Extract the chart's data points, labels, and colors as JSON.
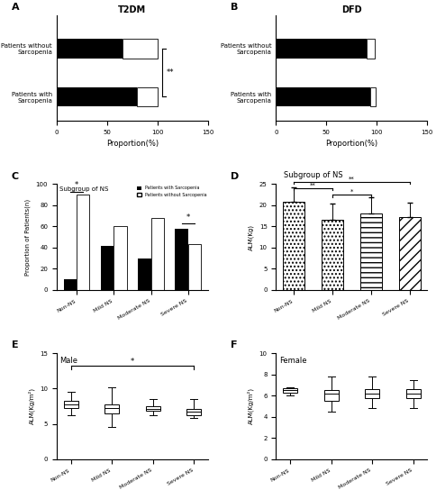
{
  "panel_A": {
    "title": "T2DM",
    "label": "A",
    "categories": [
      "Patients without\nSarcopenia",
      "Patients with\nSarcopenia"
    ],
    "dpn_values": [
      65,
      80
    ],
    "no_dpn_values": [
      35,
      20
    ],
    "xlim": [
      0,
      150
    ],
    "xticks": [
      0,
      50,
      100,
      150
    ],
    "xlabel": "Proportion(%)",
    "significance": "**"
  },
  "panel_B": {
    "title": "DFD",
    "label": "B",
    "categories": [
      "Patients without\nSarcopenia",
      "Patients with\nSarcopenia"
    ],
    "dpn_values": [
      90,
      93
    ],
    "no_dpn_values": [
      8,
      6
    ],
    "xlim": [
      0,
      150
    ],
    "xticks": [
      0,
      50,
      100,
      150
    ],
    "xlabel": "Proportion(%)"
  },
  "panel_C": {
    "label": "C",
    "title": "Subgroup of NS",
    "categories": [
      "Non-NS",
      "Mild NS",
      "Moderate NS",
      "Severe NS"
    ],
    "sarcopenia_values": [
      10,
      42,
      30,
      58
    ],
    "no_sarcopenia_values": [
      90,
      60,
      68,
      43
    ],
    "ylabel": "Proportion of Patients(n)",
    "ylim": [
      0,
      100
    ],
    "yticks": [
      0,
      20,
      40,
      60,
      80,
      100
    ]
  },
  "panel_D": {
    "label": "D",
    "title": "Subgroup of NS",
    "categories": [
      "Non-NS",
      "Mild NS",
      "Moderate NS",
      "Severe NS"
    ],
    "means": [
      20.8,
      16.5,
      18.0,
      17.2
    ],
    "errors": [
      3.5,
      4.0,
      3.8,
      3.5
    ],
    "ylabel": "ALM(Kg)",
    "ylim": [
      0,
      25
    ],
    "yticks": [
      0,
      5,
      10,
      15,
      20,
      25
    ],
    "patterns": [
      "....",
      "....",
      "----",
      "////"
    ],
    "edge_colors": [
      "black",
      "black",
      "black",
      "black"
    ]
  },
  "panel_E": {
    "label": "E",
    "title": "Male",
    "categories": [
      "Non-NS",
      "Mild NS",
      "Moderate NS",
      "Severe NS"
    ],
    "q1": [
      7.2,
      6.5,
      6.8,
      6.2
    ],
    "median": [
      7.8,
      7.2,
      7.1,
      6.7
    ],
    "q3": [
      8.3,
      7.8,
      7.5,
      7.1
    ],
    "whisker_low": [
      6.2,
      4.5,
      6.2,
      5.8
    ],
    "whisker_high": [
      9.5,
      10.2,
      8.5,
      8.5
    ],
    "ylabel": "ALM(Kg/m²)",
    "ylim": [
      0,
      15
    ],
    "yticks": [
      0,
      5,
      10,
      15
    ]
  },
  "panel_F": {
    "label": "F",
    "title": "Female",
    "categories": [
      "Non-NS",
      "Mild NS",
      "Moderate NS",
      "Severe NS"
    ],
    "q1": [
      6.3,
      5.5,
      5.8,
      5.8
    ],
    "median": [
      6.5,
      6.2,
      6.2,
      6.2
    ],
    "q3": [
      6.7,
      6.5,
      6.6,
      6.6
    ],
    "whisker_low": [
      6.0,
      4.5,
      4.8,
      4.8
    ],
    "whisker_high": [
      6.8,
      7.8,
      7.8,
      7.5
    ],
    "ylabel": "ALM(Kg/m²)",
    "ylim": [
      0,
      10
    ],
    "yticks": [
      0,
      2,
      4,
      6,
      8,
      10
    ]
  }
}
